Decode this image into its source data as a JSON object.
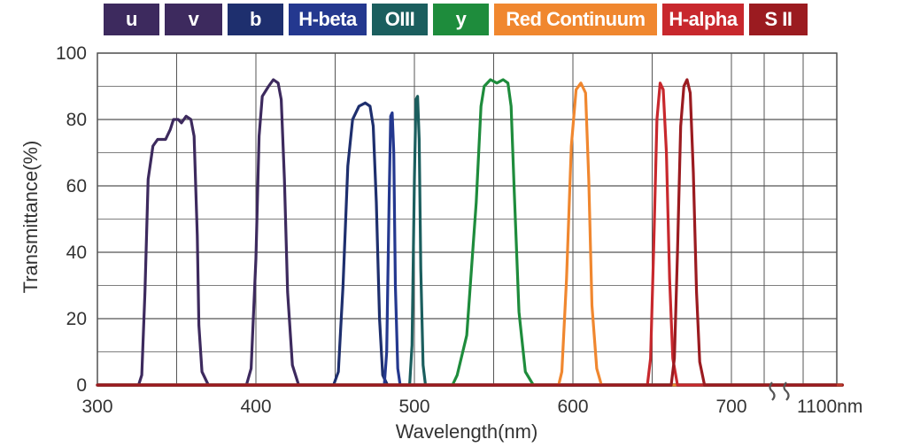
{
  "chart_data": {
    "type": "line",
    "title": "",
    "xlabel": "Wavelength(nm)",
    "ylabel": "Transmittance(%)",
    "xlim": [
      300,
      770
    ],
    "ylim": [
      0,
      100
    ],
    "grid": true,
    "legend_placement": "top",
    "x_tick_labels": [
      "300",
      "400",
      "500",
      "600",
      "700",
      "1100nm"
    ],
    "y_tick_labels": [
      "0",
      "20",
      "40",
      "60",
      "80",
      "100"
    ],
    "x_axis_break_after": 700,
    "x_axis_break_end_label": "1100nm",
    "series": [
      {
        "name": "u",
        "color": "#3d2a5e",
        "points": [
          [
            300,
            0
          ],
          [
            326,
            0
          ],
          [
            328,
            3
          ],
          [
            330,
            28
          ],
          [
            332,
            62
          ],
          [
            335,
            72
          ],
          [
            338,
            74
          ],
          [
            343,
            74
          ],
          [
            346,
            77
          ],
          [
            348,
            80
          ],
          [
            351,
            80
          ],
          [
            353,
            79
          ],
          [
            356,
            81
          ],
          [
            359,
            80
          ],
          [
            361,
            75
          ],
          [
            363,
            45
          ],
          [
            364,
            18
          ],
          [
            366,
            4
          ],
          [
            370,
            0
          ],
          [
            770,
            0
          ]
        ]
      },
      {
        "name": "v",
        "color": "#3d2a5e",
        "points": [
          [
            300,
            0
          ],
          [
            394,
            0
          ],
          [
            397,
            5
          ],
          [
            400,
            38
          ],
          [
            402,
            75
          ],
          [
            404,
            87
          ],
          [
            408,
            90
          ],
          [
            411,
            92
          ],
          [
            414,
            91
          ],
          [
            416,
            86
          ],
          [
            418,
            62
          ],
          [
            420,
            28
          ],
          [
            423,
            6
          ],
          [
            427,
            0
          ],
          [
            770,
            0
          ]
        ]
      },
      {
        "name": "b",
        "color": "#1e2f6e",
        "points": [
          [
            300,
            0
          ],
          [
            449,
            0
          ],
          [
            452,
            4
          ],
          [
            455,
            30
          ],
          [
            458,
            66
          ],
          [
            461,
            80
          ],
          [
            465,
            84
          ],
          [
            469,
            85
          ],
          [
            472,
            84
          ],
          [
            474,
            78
          ],
          [
            476,
            55
          ],
          [
            478,
            20
          ],
          [
            480,
            3
          ],
          [
            483,
            0
          ],
          [
            770,
            0
          ]
        ]
      },
      {
        "name": "H-beta",
        "color": "#24388f",
        "points": [
          [
            300,
            0
          ],
          [
            481,
            0
          ],
          [
            482.5,
            10
          ],
          [
            484,
            55
          ],
          [
            485,
            81
          ],
          [
            486,
            82
          ],
          [
            487,
            70
          ],
          [
            488,
            30
          ],
          [
            489.5,
            5
          ],
          [
            491,
            0
          ],
          [
            770,
            0
          ]
        ]
      },
      {
        "name": "OIII",
        "color": "#1b5e5e",
        "points": [
          [
            300,
            0
          ],
          [
            497,
            0
          ],
          [
            498.5,
            12
          ],
          [
            500,
            62
          ],
          [
            501,
            86
          ],
          [
            502,
            87
          ],
          [
            503,
            74
          ],
          [
            504,
            35
          ],
          [
            505.5,
            6
          ],
          [
            507,
            0
          ],
          [
            770,
            0
          ]
        ]
      },
      {
        "name": "y",
        "color": "#1e8c3c",
        "points": [
          [
            300,
            0
          ],
          [
            524,
            0
          ],
          [
            527,
            3
          ],
          [
            533,
            15
          ],
          [
            539,
            55
          ],
          [
            542,
            84
          ],
          [
            544,
            90
          ],
          [
            548,
            92
          ],
          [
            552,
            91
          ],
          [
            556,
            92
          ],
          [
            559,
            91
          ],
          [
            561,
            84
          ],
          [
            563,
            58
          ],
          [
            566,
            22
          ],
          [
            570,
            4
          ],
          [
            575,
            0
          ],
          [
            770,
            0
          ]
        ]
      },
      {
        "name": "Red Continuum",
        "color": "#f0872f",
        "points": [
          [
            300,
            0
          ],
          [
            591,
            0
          ],
          [
            593,
            4
          ],
          [
            596,
            32
          ],
          [
            599,
            72
          ],
          [
            602,
            89
          ],
          [
            605,
            91
          ],
          [
            608,
            88
          ],
          [
            610,
            62
          ],
          [
            612,
            24
          ],
          [
            615,
            5
          ],
          [
            618,
            0
          ],
          [
            770,
            0
          ]
        ]
      },
      {
        "name": "H-alpha",
        "color": "#c8282d",
        "points": [
          [
            300,
            0
          ],
          [
            647,
            0
          ],
          [
            649,
            8
          ],
          [
            651,
            42
          ],
          [
            653,
            80
          ],
          [
            655,
            91
          ],
          [
            657,
            89
          ],
          [
            659,
            70
          ],
          [
            661,
            32
          ],
          [
            663,
            8
          ],
          [
            666,
            0
          ],
          [
            770,
            0
          ]
        ]
      },
      {
        "name": "S II",
        "color": "#9b1b20",
        "points": [
          [
            300,
            0
          ],
          [
            662,
            0
          ],
          [
            664,
            8
          ],
          [
            666,
            40
          ],
          [
            668,
            78
          ],
          [
            670,
            90
          ],
          [
            672,
            92
          ],
          [
            674,
            88
          ],
          [
            676,
            64
          ],
          [
            678,
            28
          ],
          [
            680,
            7
          ],
          [
            683,
            0
          ],
          [
            770,
            0
          ]
        ]
      }
    ]
  }
}
